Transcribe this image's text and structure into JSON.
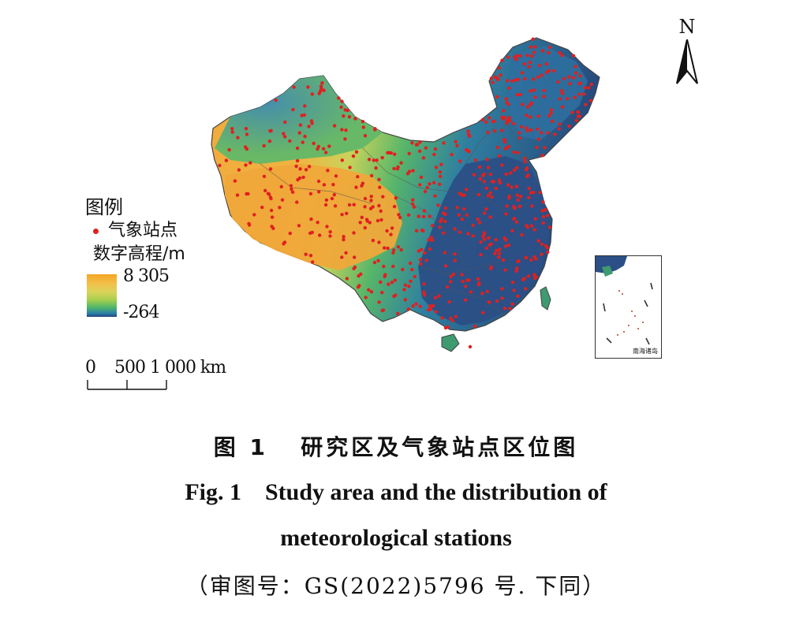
{
  "map": {
    "north_label": "N",
    "legend": {
      "title": "图例",
      "station_label": "气象站点",
      "dem_label": "数字高程/m",
      "dem_max": "8 305",
      "dem_min": "-264"
    },
    "scalebar": {
      "label": "0    500 1 000 km"
    },
    "inset_label": "南海诸岛",
    "colors": {
      "station": "#e02020",
      "high_elevation": "#f5a623",
      "mid_elevation": "#4fb56a",
      "low_elevation": "#23407a"
    }
  },
  "caption": {
    "cn": "图 1   研究区及气象站点区位图",
    "en_line1": "Fig. 1    Study area and the distribution of",
    "en_line2": "meteorological stations",
    "note": "（审图号：GS(2022)5796 号. 下同）"
  }
}
